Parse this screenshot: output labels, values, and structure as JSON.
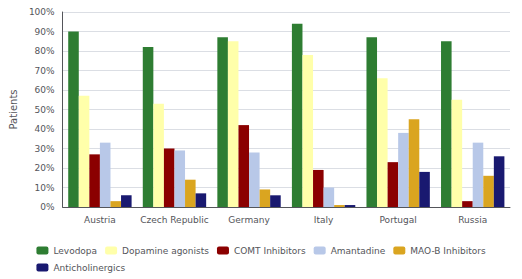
{
  "chart_data": {
    "type": "bar",
    "ylabel": "Patients",
    "categories": [
      "Austria",
      "Czech Republic",
      "Germany",
      "Italy",
      "Portugal",
      "Russia"
    ],
    "series": [
      {
        "name": "Levodopa",
        "color": "#2E7D32",
        "values": [
          90,
          82,
          87,
          94,
          87,
          85
        ]
      },
      {
        "name": "Dopamine agonists",
        "color": "#FFFFAA",
        "values": [
          57,
          53,
          85,
          78,
          66,
          55
        ]
      },
      {
        "name": "COMT Inhibitors",
        "color": "#8B0000",
        "values": [
          27,
          30,
          42,
          19,
          23,
          3
        ]
      },
      {
        "name": "Amantadine",
        "color": "#B8C8E8",
        "values": [
          33,
          29,
          28,
          10,
          38,
          33
        ]
      },
      {
        "name": "MAO-B Inhibitors",
        "color": "#DAA520",
        "values": [
          3,
          14,
          9,
          1,
          45,
          16
        ]
      },
      {
        "name": "Anticholinergics",
        "color": "#191970",
        "values": [
          6,
          7,
          6,
          1,
          18,
          26
        ]
      }
    ],
    "ylim": [
      0,
      100
    ],
    "yticks": [
      {
        "value": 0,
        "label": "0%"
      },
      {
        "value": 10,
        "label": "10%"
      },
      {
        "value": 20,
        "label": "20%"
      },
      {
        "value": 30,
        "label": "30%"
      },
      {
        "value": 40,
        "label": "40%"
      },
      {
        "value": 50,
        "label": "50%"
      },
      {
        "value": 60,
        "label": "60%"
      },
      {
        "value": 70,
        "label": "70%"
      },
      {
        "value": 80,
        "label": "80%"
      },
      {
        "value": 90,
        "label": "90%"
      },
      {
        "value": 100,
        "label": "100%"
      }
    ],
    "grid": true,
    "legend": "bottom"
  }
}
